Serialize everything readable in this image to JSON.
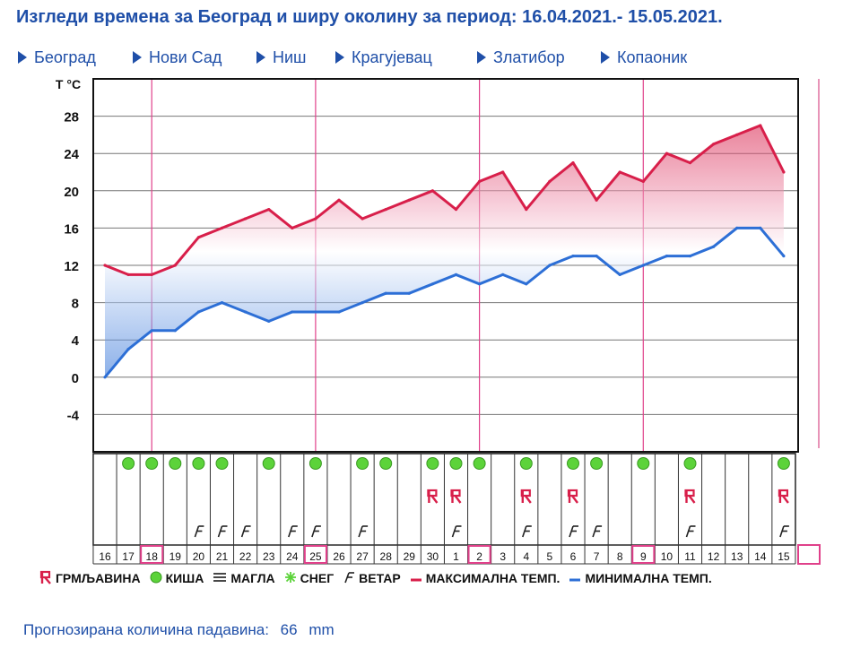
{
  "title": "Изгледи времена за Београд и ширу околину за период: 16.04.2021.- 15.05.2021.",
  "nav": [
    {
      "label": "Београд"
    },
    {
      "label": "Нови Сад"
    },
    {
      "label": "Ниш"
    },
    {
      "label": "Крагујевац"
    },
    {
      "label": "Златибор"
    },
    {
      "label": "Копаоник"
    }
  ],
  "chart_data": {
    "type": "area",
    "ylabel": "T °C",
    "yticks": [
      -4,
      0,
      4,
      8,
      12,
      16,
      20,
      24,
      28
    ],
    "ylim": [
      -8,
      32
    ],
    "x": [
      "16",
      "17",
      "18",
      "19",
      "20",
      "21",
      "22",
      "23",
      "24",
      "25",
      "26",
      "27",
      "28",
      "29",
      "30",
      "1",
      "2",
      "3",
      "4",
      "5",
      "6",
      "7",
      "8",
      "9",
      "10",
      "11",
      "12",
      "13",
      "14",
      "15"
    ],
    "highlighted_days": [
      "18",
      "25",
      "2",
      "9"
    ],
    "series": [
      {
        "name": "МАКСИМАЛНА ТЕМП.",
        "color": "#d81f4a",
        "values": [
          12,
          11,
          11,
          12,
          15,
          16,
          17,
          18,
          16,
          17,
          19,
          17,
          18,
          19,
          20,
          18,
          21,
          22,
          18,
          21,
          23,
          19,
          22,
          21,
          24,
          23,
          25,
          26,
          27,
          22
        ]
      },
      {
        "name": "МИНИМАЛНА ТЕМП.",
        "color": "#2d6fd6",
        "values": [
          0,
          3,
          5,
          5,
          7,
          8,
          7,
          6,
          7,
          7,
          7,
          8,
          9,
          9,
          10,
          11,
          10,
          11,
          10,
          12,
          13,
          13,
          11,
          12,
          13,
          13,
          14,
          16,
          16,
          13
        ]
      }
    ],
    "weather": {
      "rain": [
        "17",
        "18",
        "19",
        "20",
        "21",
        "23",
        "25",
        "27",
        "28",
        "30",
        "1",
        "2",
        "4",
        "6",
        "7",
        "9",
        "11",
        "15"
      ],
      "thunder": [
        "30",
        "1",
        "4",
        "6",
        "11",
        "15"
      ],
      "wind": [
        "20",
        "21",
        "22",
        "24",
        "25",
        "27",
        "1",
        "4",
        "6",
        "7",
        "11",
        "15"
      ]
    }
  },
  "legend": [
    {
      "label": "ГРМЉАВИНА",
      "icon": "thunder-icon"
    },
    {
      "label": "КИША",
      "icon": "rain-icon"
    },
    {
      "label": "МАГЛА",
      "icon": "fog-icon"
    },
    {
      "label": "СНЕГ",
      "icon": "snow-icon"
    },
    {
      "label": "ВЕТАР",
      "icon": "wind-icon"
    },
    {
      "label": "МАКСИМАЛНА ТЕМП.",
      "icon": "max-temp-line-icon"
    },
    {
      "label": "МИНИМАЛНА ТЕМП.",
      "icon": "min-temp-line-icon"
    }
  ],
  "footer": {
    "label": "Прогнозирана количина падавина:",
    "value": "66",
    "unit": "mm"
  },
  "colors": {
    "accent": "#1f4fa8",
    "max": "#d81f4a",
    "min": "#2d6fd6",
    "rain": "#5cd33a",
    "grid": "#777777",
    "highlight": "#e0408a"
  }
}
